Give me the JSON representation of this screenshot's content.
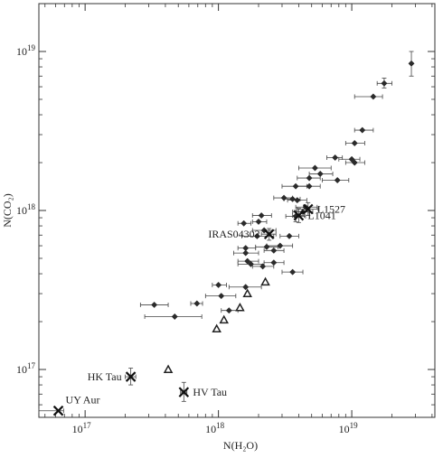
{
  "chart_data": {
    "type": "scatter",
    "xlabel": "N(H₂O)",
    "ylabel": "N(CO₂)",
    "xscale": "log",
    "yscale": "log",
    "xlim": [
      4.5e+16,
      4.2e+19
    ],
    "ylim": [
      5e+16,
      2e+19
    ],
    "grid": false,
    "x_ticks": [
      {
        "value": 1e+17,
        "label": "10",
        "exp": "17"
      },
      {
        "value": 1e+18,
        "label": "10",
        "exp": "18"
      },
      {
        "value": 1e+19,
        "label": "10",
        "exp": "19"
      }
    ],
    "y_ticks": [
      {
        "value": 1e+17,
        "label": "10",
        "exp": "17"
      },
      {
        "value": 1e+18,
        "label": "10",
        "exp": "18"
      },
      {
        "value": 1e+19,
        "label": "10",
        "exp": "19"
      }
    ],
    "series": [
      {
        "marker": "diamond",
        "points": [
          {
            "x": 2.8e+19,
            "y": 8.4e+18,
            "xerr": [
              2.8e+19,
              2.8e+19
            ],
            "yerr": [
              7e+18,
              1e+19
            ]
          },
          {
            "x": 1.75e+19,
            "y": 6.3e+18,
            "xerr": [
              1.55e+19,
              2e+19
            ],
            "yerr": [
              5.9e+18,
              6.8e+18
            ]
          },
          {
            "x": 1.45e+19,
            "y": 5.2e+18,
            "xerr": [
              1.05e+19,
              1.7e+19
            ],
            "yerr": null
          },
          {
            "x": 1.2e+19,
            "y": 3.2e+18,
            "xerr": [
              1.05e+19,
              1.45e+19
            ],
            "yerr": null
          },
          {
            "x": 1.05e+19,
            "y": 2.65e+18,
            "xerr": [
              9e+18,
              1.25e+19
            ],
            "yerr": null
          },
          {
            "x": 1e+19,
            "y": 2.1e+18,
            "xerr": [
              8e+18,
              1.15e+19
            ],
            "yerr": null
          },
          {
            "x": 1.05e+19,
            "y": 2e+18,
            "xerr": [
              9e+18,
              1.25e+19
            ],
            "yerr": null
          },
          {
            "x": 7.5e+18,
            "y": 2.15e+18,
            "xerr": [
              6.5e+18,
              8.5e+18
            ],
            "yerr": null
          },
          {
            "x": 7.8e+18,
            "y": 1.55e+18,
            "xerr": [
              6e+18,
              9.5e+18
            ],
            "yerr": null
          },
          {
            "x": 5.3e+18,
            "y": 1.85e+18,
            "xerr": [
              4e+18,
              7e+18
            ],
            "yerr": null
          },
          {
            "x": 5.8e+18,
            "y": 1.7e+18,
            "xerr": [
              4.8e+18,
              7.2e+18
            ],
            "yerr": null
          },
          {
            "x": 4.8e+18,
            "y": 1.6e+18,
            "xerr": [
              3.9e+18,
              5.8e+18
            ],
            "yerr": null
          },
          {
            "x": 4.8e+18,
            "y": 1.42e+18,
            "xerr": [
              3.8e+18,
              5.8e+18
            ],
            "yerr": null
          },
          {
            "x": 3.8e+18,
            "y": 1.42e+18,
            "xerr": [
              3e+18,
              4.6e+18
            ],
            "yerr": null
          },
          {
            "x": 3.1e+18,
            "y": 1.2e+18,
            "xerr": [
              2.6e+18,
              3.6e+18
            ],
            "yerr": null
          },
          {
            "x": 3.6e+18,
            "y": 1.18e+18,
            "xerr": [
              3.1e+18,
              4.1e+18
            ],
            "yerr": null
          },
          {
            "x": 3.9e+18,
            "y": 1.16e+18,
            "xerr": [
              3.3e+18,
              4.6e+18
            ],
            "yerr": null
          },
          {
            "x": 4.5e+18,
            "y": 1.05e+18,
            "xerr": [
              3.8e+18,
              5.5e+18
            ],
            "yerr": null
          },
          {
            "x": 4.3e+18,
            "y": 9.8e+17,
            "xerr": [
              3.6e+18,
              5.1e+18
            ],
            "yerr": null
          },
          {
            "x": 3.8e+18,
            "y": 9.2e+17,
            "xerr": [
              3.2e+18,
              4.5e+18
            ],
            "yerr": [
              8.5e+17,
              1e+18
            ]
          },
          {
            "x": 2.1e+18,
            "y": 9.3e+17,
            "xerr": [
              1.8e+18,
              2.5e+18
            ],
            "yerr": null
          },
          {
            "x": 1.55e+18,
            "y": 8.3e+17,
            "xerr": [
              1.4e+18,
              1.75e+18
            ],
            "yerr": null
          },
          {
            "x": 2e+18,
            "y": 8.5e+17,
            "xerr": [
              1.8e+18,
              2.3e+18
            ],
            "yerr": null
          },
          {
            "x": 2.2e+18,
            "y": 7.5e+17,
            "xerr": [
              1.8e+18,
              2.7e+18
            ],
            "yerr": null
          },
          {
            "x": 1.95e+18,
            "y": 6.9e+17,
            "xerr": [
              1.5e+18,
              2.6e+18
            ],
            "yerr": null
          },
          {
            "x": 3.4e+18,
            "y": 6.9e+17,
            "xerr": [
              2.9e+18,
              4e+18
            ],
            "yerr": null
          },
          {
            "x": 2.9e+18,
            "y": 6e+17,
            "xerr": [
              2.3e+18,
              3.6e+18
            ],
            "yerr": null
          },
          {
            "x": 1.6e+18,
            "y": 5.8e+17,
            "xerr": [
              1.4e+18,
              1.9e+18
            ],
            "yerr": null
          },
          {
            "x": 2.3e+18,
            "y": 5.9e+17,
            "xerr": [
              1.9e+18,
              2.8e+18
            ],
            "yerr": null
          },
          {
            "x": 2.6e+18,
            "y": 5.6e+17,
            "xerr": [
              2.2e+18,
              3.1e+18
            ],
            "yerr": null
          },
          {
            "x": 1.6e+18,
            "y": 5.4e+17,
            "xerr": [
              1.3e+18,
              2e+18
            ],
            "yerr": null
          },
          {
            "x": 1.65e+18,
            "y": 4.8e+17,
            "xerr": [
              1.4e+18,
              2e+18
            ],
            "yerr": null
          },
          {
            "x": 2.6e+18,
            "y": 4.7e+17,
            "xerr": [
              2.2e+18,
              3.1e+18
            ],
            "yerr": null
          },
          {
            "x": 1.75e+18,
            "y": 4.6e+17,
            "xerr": [
              1.4e+18,
              2.2e+18
            ],
            "yerr": null
          },
          {
            "x": 2.15e+18,
            "y": 4.45e+17,
            "xerr": [
              1.8e+18,
              2.6e+18
            ],
            "yerr": null
          },
          {
            "x": 3.6e+18,
            "y": 4.1e+17,
            "xerr": [
              3e+18,
              4.3e+18
            ],
            "yerr": null
          },
          {
            "x": 1e+18,
            "y": 3.4e+17,
            "xerr": [
              9e+17,
              1.15e+18
            ],
            "yerr": null
          },
          {
            "x": 1.6e+18,
            "y": 3.3e+17,
            "xerr": [
              1.2e+18,
              2.1e+18
            ],
            "yerr": null
          },
          {
            "x": 1.05e+18,
            "y": 2.9e+17,
            "xerr": [
              8e+17,
              1.35e+18
            ],
            "yerr": null
          },
          {
            "x": 3.3e+17,
            "y": 2.55e+17,
            "xerr": [
              2.6e+17,
              4.2e+17
            ],
            "yerr": null
          },
          {
            "x": 6.9e+17,
            "y": 2.6e+17,
            "xerr": [
              6.2e+17,
              7.6e+17
            ],
            "yerr": null
          },
          {
            "x": 1.2e+18,
            "y": 2.35e+17,
            "xerr": [
              1.05e+18,
              1.4e+18
            ],
            "yerr": null
          },
          {
            "x": 4.7e+17,
            "y": 2.15e+17,
            "xerr": [
              2.8e+17,
              7.5e+17
            ],
            "yerr": null
          }
        ]
      },
      {
        "marker": "triangle-open",
        "points": [
          {
            "x": 2.25e+18,
            "y": 3.55e+17
          },
          {
            "x": 1.65e+18,
            "y": 3e+17
          },
          {
            "x": 1.45e+18,
            "y": 2.45e+17
          },
          {
            "x": 1.1e+18,
            "y": 2.05e+17
          },
          {
            "x": 9.7e+17,
            "y": 1.8e+17
          },
          {
            "x": 4.2e+17,
            "y": 1e+17
          }
        ]
      },
      {
        "marker": "cross",
        "points": [
          {
            "x": 2.4e+18,
            "y": 7.1e+17,
            "label": "IRAS04302",
            "label_pos": "left",
            "xerr": [
              2.1e+18,
              2.7e+18
            ],
            "yerr": [
              6.5e+17,
              7.7e+17
            ]
          },
          {
            "x": 4.7e+18,
            "y": 1.02e+18,
            "label": "L1527",
            "label_pos": "right",
            "xerr": [
              3.9e+18,
              5.6e+18
            ],
            "yerr": [
              9.3e+17,
              1.12e+18
            ]
          },
          {
            "x": 4e+18,
            "y": 9.3e+17,
            "label": "L1041",
            "label_pos": "right",
            "xerr": [
              3.6e+18,
              4.4e+18
            ],
            "yerr": [
              8.4e+17,
              1.03e+18
            ]
          },
          {
            "x": 2.2e+17,
            "y": 9e+16,
            "label": "HK Tau",
            "label_pos": "left",
            "xerr": [
              2e+17,
              2.4e+17
            ],
            "yerr": [
              8e+16,
              1.02e+17
            ]
          },
          {
            "x": 5.5e+17,
            "y": 7.2e+16,
            "label": "HV Tau",
            "label_pos": "right",
            "xerr": [
              5.2e+17,
              5.8e+17
            ],
            "yerr": [
              6.3e+16,
              8.3e+16
            ]
          },
          {
            "x": 6.3e+16,
            "y": 5.5e+16,
            "label": "UY Aur",
            "label_pos": "above-right",
            "xerr": [
              4.5e+16,
              6.9e+16
            ],
            "yerr": null
          }
        ]
      }
    ]
  }
}
